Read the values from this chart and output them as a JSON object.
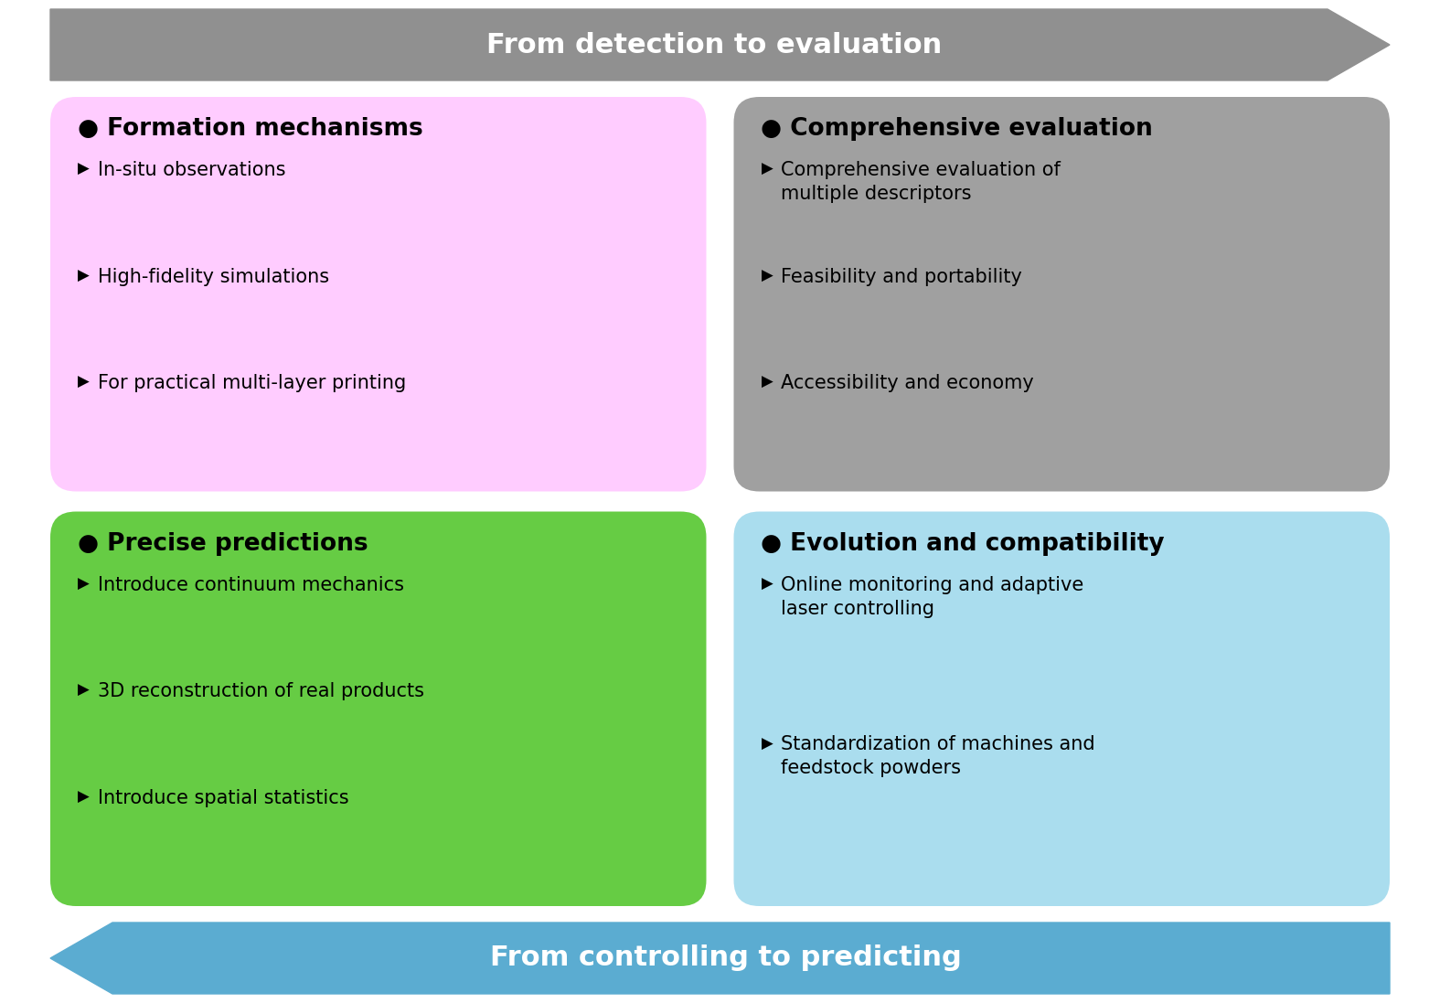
{
  "background_color": "#ffffff",
  "top_arrow": {
    "text": "From detection to evaluation",
    "color": "#909090",
    "text_color": "#ffffff",
    "direction": "right"
  },
  "bottom_arrow": {
    "text": "From controlling to predicting",
    "color": "#5bacd1",
    "text_color": "#ffffff",
    "direction": "left"
  },
  "boxes": [
    {
      "title": "● Formation mechanisms",
      "bullet_char": "▶",
      "items": [
        "In-situ observations",
        "High-fidelity simulations",
        "For practical multi-layer printing"
      ],
      "bg_color": "#ffccff",
      "text_color": "#000000",
      "position": "top-left"
    },
    {
      "title": "● Comprehensive evaluation",
      "bullet_char": "▶",
      "items": [
        "Comprehensive evaluation of\nmultiple descriptors",
        "Feasibility and portability",
        "Accessibility and economy"
      ],
      "bg_color": "#a0a0a0",
      "text_color": "#000000",
      "position": "top-right"
    },
    {
      "title": "● Precise predictions",
      "bullet_char": "▶",
      "items": [
        "Introduce continuum mechanics",
        "3D reconstruction of real products",
        "Introduce spatial statistics"
      ],
      "bg_color": "#66cc44",
      "text_color": "#000000",
      "position": "bottom-left"
    },
    {
      "title": "● Evolution and compatibility",
      "bullet_char": "▶",
      "items": [
        "Online monitoring and adaptive\nlaser controlling",
        "Standardization of machines and\nfeedstock powders"
      ],
      "bg_color": "#aaddee",
      "text_color": "#000000",
      "position": "bottom-right"
    }
  ],
  "title_fontsize": 19,
  "item_fontsize": 15,
  "arrow_fontsize": 22
}
